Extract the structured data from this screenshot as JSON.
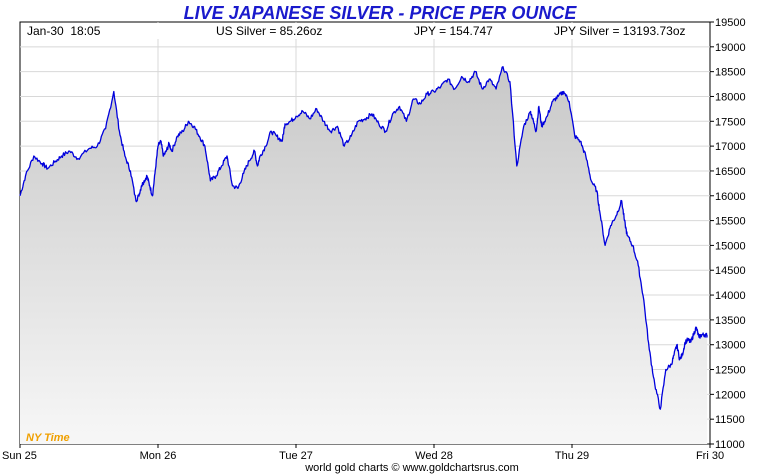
{
  "chart_data": {
    "type": "line",
    "title": "LIVE JAPANESE SILVER - PRICE PER OUNCE",
    "header": {
      "datetime": "Jan-30  18:05",
      "us_silver": "US Silver = 85.26oz",
      "jpy": "JPY = 154.747",
      "jpy_silver": "JPY Silver = 13193.73oz"
    },
    "timezone_label": "NY Time",
    "footer": "world gold charts © www.goldchartsrus.com",
    "ylim": [
      11000,
      19500
    ],
    "yticks": [
      11000,
      11500,
      12000,
      12500,
      13000,
      13500,
      14000,
      14500,
      15000,
      15500,
      16000,
      16500,
      17000,
      17500,
      18000,
      18500,
      19000,
      19500
    ],
    "xlim": [
      0,
      5
    ],
    "xtick_labels": [
      {
        "label": "Sun 25",
        "x": 0
      },
      {
        "label": "Mon 26",
        "x": 1
      },
      {
        "label": "Tue 27",
        "x": 2
      },
      {
        "label": "Wed 28",
        "x": 3
      },
      {
        "label": "Thu 29",
        "x": 4
      },
      {
        "label": "Fri 30",
        "x": 5
      }
    ],
    "series": [
      {
        "name": "JPY Silver",
        "color": "#0000dd",
        "x": [
          0.0,
          0.04,
          0.1,
          0.16,
          0.2,
          0.26,
          0.3,
          0.36,
          0.42,
          0.5,
          0.56,
          0.62,
          0.68,
          0.72,
          0.76,
          0.8,
          0.84,
          0.86,
          0.88,
          0.9,
          0.92,
          0.94,
          0.96,
          0.98,
          1.0,
          1.02,
          1.04,
          1.06,
          1.08,
          1.1,
          1.14,
          1.18,
          1.22,
          1.26,
          1.3,
          1.34,
          1.38,
          1.42,
          1.46,
          1.5,
          1.54,
          1.58,
          1.62,
          1.66,
          1.7,
          1.72,
          1.74,
          1.78,
          1.82,
          1.86,
          1.9,
          1.92,
          1.96,
          2.0,
          2.05,
          2.1,
          2.15,
          2.2,
          2.25,
          2.3,
          2.35,
          2.4,
          2.45,
          2.5,
          2.55,
          2.6,
          2.65,
          2.7,
          2.75,
          2.8,
          2.85,
          2.9,
          2.95,
          3.0,
          3.05,
          3.1,
          3.15,
          3.2,
          3.25,
          3.3,
          3.35,
          3.4,
          3.45,
          3.5,
          3.55,
          3.6,
          3.65,
          3.7,
          3.72,
          3.74,
          3.76,
          3.78,
          3.82,
          3.86,
          3.9,
          3.94,
          3.98,
          4.02,
          4.06,
          4.1,
          4.14,
          4.18,
          4.2,
          4.24,
          4.28,
          4.32,
          4.36,
          4.38,
          4.4,
          4.44,
          4.48,
          4.52,
          4.56,
          4.6,
          4.64,
          4.68,
          4.72,
          4.74,
          4.76,
          4.78,
          4.8,
          4.82,
          4.84,
          4.86,
          4.88,
          4.9,
          4.92,
          4.94,
          4.96,
          4.98
        ],
        "values": [
          16000,
          16400,
          16800,
          16650,
          16550,
          16700,
          16800,
          16900,
          16750,
          16950,
          17000,
          17350,
          18100,
          17300,
          16800,
          16500,
          15900,
          16000,
          16200,
          16300,
          16400,
          16200,
          16000,
          16500,
          17000,
          17100,
          16800,
          16900,
          17050,
          16900,
          17200,
          17300,
          17500,
          17400,
          17200,
          17000,
          16300,
          16400,
          16600,
          16800,
          16200,
          16150,
          16450,
          16700,
          16900,
          16600,
          16800,
          17000,
          17300,
          17200,
          17100,
          17450,
          17500,
          17600,
          17700,
          17550,
          17750,
          17500,
          17300,
          17400,
          17000,
          17200,
          17500,
          17550,
          17650,
          17450,
          17300,
          17650,
          17800,
          17500,
          17950,
          17850,
          18050,
          18100,
          18200,
          18350,
          18150,
          18400,
          18300,
          18500,
          18150,
          18350,
          18150,
          18600,
          18300,
          16600,
          17400,
          17700,
          17500,
          17300,
          17800,
          17400,
          17600,
          17900,
          18000,
          18100,
          17900,
          17200,
          17100,
          16800,
          16300,
          16100,
          15700,
          15000,
          15400,
          15600,
          15900,
          15500,
          15200,
          15000,
          14600,
          13900,
          12900,
          12200,
          11700,
          12500,
          12600,
          12800,
          13000,
          12700,
          12800,
          13050,
          13100,
          13050,
          13200,
          13350,
          13150,
          13200,
          13200,
          13190
        ]
      }
    ]
  }
}
